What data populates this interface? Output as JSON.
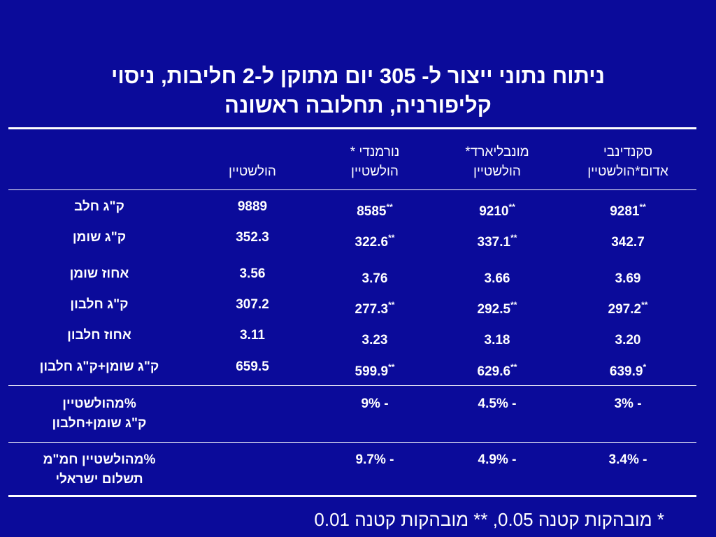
{
  "title": {
    "line1": "ניתוח נתוני ייצור ל- 305 יום מתוקן ל-2 חליבות, ניסוי",
    "line2": "קליפורניה, תחלובה ראשונה"
  },
  "header": {
    "scandinavian": {
      "line1": "סקנדינבי",
      "line2": "אדום*הולשטיין"
    },
    "montbeliarde": {
      "line1": "מונבליארד*",
      "line2": "הולשטיין"
    },
    "normande": {
      "line1": "נורמנדי *",
      "line2": "הולשטיין"
    },
    "holstein": {
      "line1": "",
      "line2": "הולשטיין"
    }
  },
  "rows": [
    {
      "label": "ק\"ג חלב",
      "scand": "9281",
      "scand_sig": "**",
      "mont": "9210",
      "mont_sig": "**",
      "norm": "8585",
      "norm_sig": "**",
      "hol": "9889"
    },
    {
      "label": "ק\"ג שומן",
      "scand": "342.7",
      "scand_sig": "",
      "mont": "337.1",
      "mont_sig": "**",
      "norm": "322.6",
      "norm_sig": "**",
      "hol": "352.3"
    },
    {
      "label": "אחוז שומן",
      "scand": "3.69",
      "scand_sig": "",
      "mont": "3.66",
      "mont_sig": "",
      "norm": "3.76",
      "norm_sig": "",
      "hol": "3.56"
    },
    {
      "label": "ק\"ג חלבון",
      "scand": "297.2",
      "scand_sig": "**",
      "mont": "292.5",
      "mont_sig": "**",
      "norm": "277.3",
      "norm_sig": "**",
      "hol": "307.2"
    },
    {
      "label": "אחוז חלבון",
      "scand": "3.20",
      "scand_sig": "",
      "mont": "3.18",
      "mont_sig": "",
      "norm": "3.23",
      "norm_sig": "",
      "hol": "3.11"
    },
    {
      "label": "ק\"ג שומן+ק\"ג חלבון",
      "scand": "639.9",
      "scand_sig": "*",
      "mont": "629.6",
      "mont_sig": "**",
      "norm": "599.9",
      "norm_sig": "**",
      "hol": "659.5"
    }
  ],
  "pct_row_1": {
    "label_line1": "%מהולשטיין",
    "label_line2": "ק\"ג שומן+חלבון",
    "scand": "- 3%",
    "mont": "- 4.5%",
    "norm": "- 9%"
  },
  "pct_row_2": {
    "label_line1": "%מהולשטיין חמ\"מ",
    "label_line2": "תשלום ישראלי",
    "scand": "- 3.4%",
    "mont": "- 4.9%",
    "norm": "- 9.7%"
  },
  "footnote": "* מובהקות קטנה 0.05, ** מובהקות קטנה 0.01",
  "colors": {
    "background": "#0b0b9a",
    "text": "#ffffff"
  }
}
